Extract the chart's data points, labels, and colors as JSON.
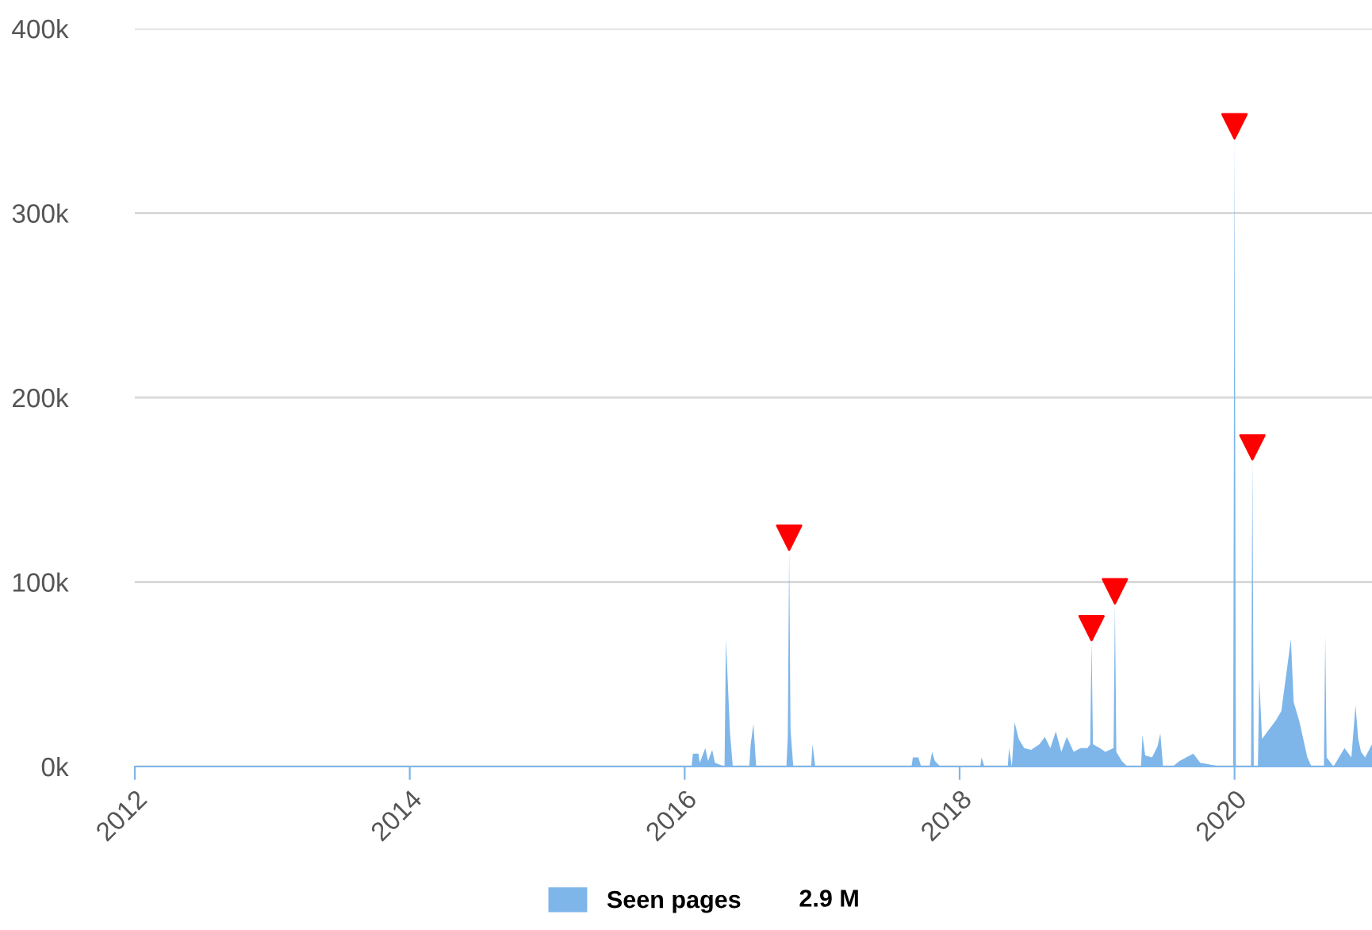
{
  "chart_data": {
    "type": "area",
    "xlim": [
      2012,
      2021
    ],
    "xticks": [
      2012,
      2014,
      2016,
      2018,
      2020
    ],
    "ylim": [
      0,
      400000
    ],
    "yticks": [
      {
        "value": 0,
        "label": "0k"
      },
      {
        "value": 100000,
        "label": "100k"
      },
      {
        "value": 200000,
        "label": "200k"
      },
      {
        "value": 300000,
        "label": "300k"
      },
      {
        "value": 400000,
        "label": "400k"
      }
    ],
    "grid": "y",
    "legend": "bottom",
    "annotations": [
      "2.9 M"
    ],
    "series": [
      {
        "name": "Seen pages",
        "color": "#7eb6ea",
        "x": [
          2012.0,
          2016.05,
          2016.06,
          2016.1,
          2016.11,
          2016.15,
          2016.17,
          2016.2,
          2016.22,
          2016.29,
          2016.3,
          2016.33,
          2016.35,
          2016.47,
          2016.48,
          2016.5,
          2016.52,
          2016.74,
          2016.75,
          2016.76,
          2016.77,
          2016.79,
          2016.92,
          2016.93,
          2016.95,
          2017.65,
          2017.66,
          2017.7,
          2017.72,
          2017.78,
          2017.8,
          2017.82,
          2017.86,
          2018.15,
          2018.16,
          2018.18,
          2018.35,
          2018.36,
          2018.38,
          2018.4,
          2018.43,
          2018.47,
          2018.52,
          2018.58,
          2018.62,
          2018.66,
          2018.7,
          2018.74,
          2018.78,
          2018.83,
          2018.88,
          2018.93,
          2018.95,
          2018.96,
          2018.97,
          2019.02,
          2019.06,
          2019.12,
          2019.13,
          2019.14,
          2019.18,
          2019.22,
          2019.32,
          2019.33,
          2019.35,
          2019.4,
          2019.44,
          2019.46,
          2019.48,
          2019.55,
          2019.6,
          2019.7,
          2019.75,
          2019.9,
          2019.99,
          2020.0,
          2020.01,
          2020.12,
          2020.13,
          2020.14,
          2020.17,
          2020.18,
          2020.2,
          2020.25,
          2020.3,
          2020.34,
          2020.38,
          2020.41,
          2020.43,
          2020.47,
          2020.5,
          2020.53,
          2020.56,
          2020.65,
          2020.66,
          2020.67,
          2020.72,
          2020.8,
          2020.85,
          2020.88,
          2020.9,
          2020.92,
          2020.95,
          2021.0
        ],
        "values": [
          0,
          0,
          7000,
          7000,
          2000,
          10000,
          3000,
          9000,
          2000,
          0,
          69000,
          18000,
          0,
          0,
          12000,
          23000,
          0,
          0,
          16000,
          117000,
          20000,
          0,
          0,
          12000,
          0,
          0,
          5000,
          5000,
          0,
          0,
          8000,
          3000,
          0,
          0,
          5000,
          0,
          0,
          10000,
          0,
          24000,
          15000,
          10000,
          9000,
          12000,
          16000,
          10000,
          19000,
          8000,
          16000,
          8000,
          10000,
          10000,
          12000,
          68000,
          12000,
          10000,
          8000,
          10000,
          88000,
          8000,
          3000,
          0,
          0,
          17000,
          6000,
          5000,
          11000,
          18000,
          0,
          0,
          3000,
          7000,
          2000,
          0,
          0,
          340000,
          0,
          0,
          166000,
          0,
          0,
          48000,
          15000,
          20000,
          25000,
          30000,
          52000,
          69000,
          35000,
          25000,
          15000,
          5000,
          0,
          0,
          71000,
          5000,
          0,
          10000,
          5000,
          33000,
          15000,
          8000,
          5000,
          12000
        ]
      },
      {
        "type": "scatter",
        "color": "#ff0000",
        "marker": "triangle",
        "x": [
          2016.76,
          2018.96,
          2019.13,
          2020.0,
          2020.13
        ],
        "values": [
          124000,
          75000,
          95000,
          347000,
          173000
        ]
      }
    ]
  }
}
